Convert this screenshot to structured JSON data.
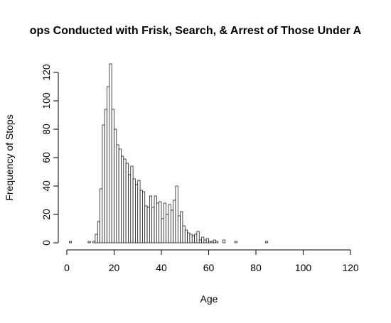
{
  "chart_data": {
    "type": "bar",
    "subtype": "histogram",
    "title": "ops Conducted with Frisk, Search, & Arrest of Those Under A",
    "xlabel": "Age",
    "ylabel": "Frequency of Stops",
    "xlim": [
      0,
      120
    ],
    "ylim": [
      0,
      125
    ],
    "xticks": [
      0,
      20,
      40,
      60,
      80,
      100,
      120
    ],
    "yticks": [
      0,
      20,
      40,
      60,
      80,
      100,
      120
    ],
    "bin_width": 1,
    "bin_start": 0,
    "grid": false,
    "legend": "none",
    "bar_fill": "#ffffff",
    "bar_stroke": "#000000",
    "values": [
      0,
      1,
      0,
      0,
      0,
      0,
      0,
      0,
      0,
      1,
      0,
      1,
      6,
      15,
      38,
      83,
      94,
      110,
      126,
      94,
      80,
      69,
      66,
      61,
      59,
      56,
      48,
      54,
      45,
      41,
      44,
      37,
      36,
      26,
      25,
      33,
      25,
      33,
      28,
      29,
      17,
      28,
      20,
      27,
      23,
      30,
      40,
      19,
      22,
      12,
      9,
      7,
      6,
      5,
      6,
      8,
      2,
      4,
      2,
      3,
      1,
      1,
      2,
      1,
      0,
      0,
      2,
      0,
      0,
      0,
      0,
      1,
      0,
      0,
      0,
      0,
      0,
      0,
      0,
      0,
      0,
      0,
      0,
      0,
      1,
      0,
      0,
      0,
      0,
      0,
      0,
      0,
      0,
      0,
      0,
      0,
      0,
      0,
      0,
      0,
      0,
      0,
      0,
      0,
      0,
      0,
      0,
      0,
      0,
      0,
      0,
      0,
      0,
      0,
      0,
      0,
      0,
      0,
      0,
      0
    ]
  }
}
